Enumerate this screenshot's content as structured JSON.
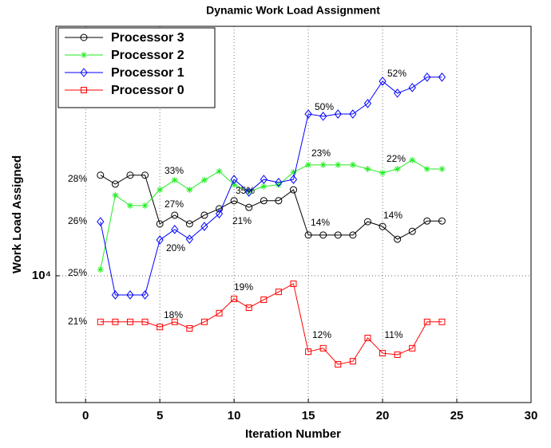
{
  "chart_data": {
    "type": "line",
    "title": "Dynamic Work Load Assignment",
    "xlabel": "Iteration Number",
    "ylabel": "Work Load Assigned",
    "x": [
      1,
      2,
      3,
      4,
      5,
      6,
      7,
      8,
      9,
      10,
      11,
      12,
      13,
      14,
      15,
      16,
      17,
      18,
      19,
      20,
      21,
      22,
      23,
      24
    ],
    "series": [
      {
        "name": "Processor 3",
        "color": "#000000",
        "marker": "circle",
        "values": [
          12740,
          12470,
          12740,
          12740,
          11330,
          11570,
          11330,
          11570,
          11750,
          11980,
          11790,
          11980,
          11980,
          12300,
          11030,
          11030,
          11030,
          11030,
          11390,
          11260,
          10920,
          11130,
          11410,
          11410
        ]
      },
      {
        "name": "Processor 2",
        "color": "#22ee22",
        "marker": "star",
        "values": [
          10150,
          12140,
          11840,
          11840,
          12300,
          12590,
          12300,
          12590,
          12860,
          12450,
          12250,
          12400,
          12450,
          12830,
          13060,
          13060,
          13060,
          13060,
          12930,
          12810,
          12930,
          13210,
          12930,
          12930
        ]
      },
      {
        "name": "Processor 1",
        "color": "#0000ff",
        "marker": "diamond",
        "values": [
          11390,
          9550,
          9550,
          9550,
          10900,
          11180,
          10920,
          11260,
          11610,
          12610,
          12230,
          12610,
          12520,
          12610,
          14760,
          14680,
          14760,
          14760,
          15140,
          15970,
          15520,
          15730,
          16130,
          16130
        ]
      },
      {
        "name": "Processor 0",
        "color": "#ff0000",
        "marker": "square",
        "values": [
          8950,
          8950,
          8950,
          8950,
          8840,
          8950,
          8810,
          8950,
          9140,
          9460,
          9260,
          9440,
          9620,
          9810,
          8330,
          8400,
          8080,
          8140,
          8610,
          8300,
          8270,
          8400,
          8950,
          8950
        ]
      }
    ],
    "annotations": [
      "28%",
      "26%",
      "25%",
      "21%",
      "33%",
      "27%",
      "20%",
      "35%",
      "21%",
      "19%",
      "18%",
      "50%",
      "23%",
      "14%",
      "12%",
      "52%",
      "22%",
      "14%",
      "11%"
    ],
    "xlim": [
      -2,
      30
    ],
    "xticks": [
      0,
      5,
      10,
      15,
      20,
      25,
      30
    ],
    "ylim": [
      7370,
      18230
    ],
    "yticks": [
      {
        "value": 10000,
        "label": "10⁴"
      }
    ],
    "log_y": true,
    "grid": true,
    "legend": "upper left"
  }
}
